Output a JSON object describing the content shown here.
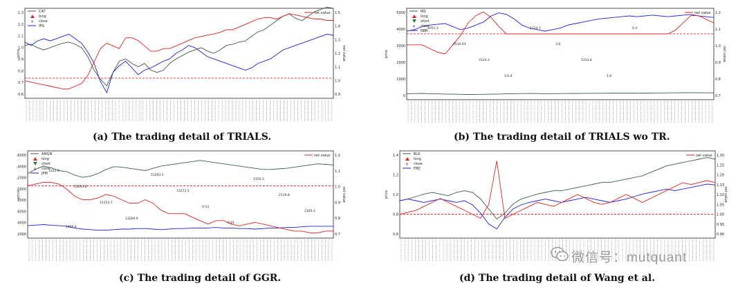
{
  "colors": {
    "price_a": "#3a5f40",
    "price_b": "#1f1fd6",
    "net": "#e02020",
    "baseline": "#e02020",
    "long": "#e02020",
    "short": "#2e7d32",
    "close": "#333366"
  },
  "captions": {
    "a": "(a) The trading detail of TRIALS.",
    "b": "(b) The trading detail of TRIALS wo TR.",
    "c": "(c) The trading detail of GGR.",
    "d": "(d) The trading detail of Wang et al."
  },
  "watermark": "微信号：mutquant",
  "panels": [
    {
      "id": "a",
      "chart_data": {
        "type": "line",
        "ylabel_left": "price",
        "ylabel_right": "net value",
        "left_ticks": [
          "1.3",
          "1.2",
          "1.1",
          "1.0",
          "0.9",
          "0.8",
          "0.7",
          "0.6"
        ],
        "right_ticks": [
          "1.5",
          "1.4",
          "1.3",
          "1.2",
          "1.1",
          "1.0",
          "0.9"
        ],
        "legend_left": [
          "CAT",
          "long",
          "close",
          "IPG"
        ],
        "legend_right": "net value",
        "series": [
          {
            "name": "CAT",
            "values": [
              1.02,
              1.03,
              1.0,
              0.98,
              1.0,
              1.02,
              1.04,
              1.05,
              1.03,
              1.0,
              0.92,
              0.8,
              0.72,
              0.66,
              0.78,
              0.88,
              0.9,
              0.86,
              0.83,
              0.86,
              0.8,
              0.78,
              0.8,
              0.86,
              0.9,
              0.93,
              0.96,
              0.98,
              1.0,
              0.97,
              0.95,
              0.98,
              1.02,
              1.03,
              1.05,
              1.06,
              1.1,
              1.14,
              1.16,
              1.2,
              1.24,
              1.28,
              1.3,
              1.26,
              1.24,
              1.28,
              1.32,
              1.34,
              1.36,
              1.35
            ]
          },
          {
            "name": "IPG",
            "values": [
              1.05,
              1.02,
              1.06,
              1.08,
              1.06,
              1.08,
              1.1,
              1.12,
              1.08,
              1.04,
              0.96,
              0.86,
              0.7,
              0.6,
              0.78,
              0.84,
              0.88,
              0.82,
              0.76,
              0.8,
              0.82,
              0.85,
              0.88,
              0.9,
              0.95,
              0.98,
              1.02,
              1.0,
              0.96,
              0.92,
              0.9,
              0.88,
              0.86,
              0.84,
              0.82,
              0.8,
              0.82,
              0.86,
              0.88,
              0.9,
              0.94,
              0.98,
              1.0,
              1.02,
              1.04,
              1.06,
              1.08,
              1.1,
              1.12,
              1.11
            ]
          },
          {
            "name": "net value",
            "values": [
              0.98,
              0.97,
              0.96,
              0.95,
              0.94,
              0.93,
              0.92,
              0.92,
              0.94,
              0.96,
              1.02,
              1.12,
              1.22,
              1.26,
              1.24,
              1.22,
              1.3,
              1.3,
              1.28,
              1.24,
              1.2,
              1.2,
              1.22,
              1.22,
              1.24,
              1.26,
              1.28,
              1.3,
              1.31,
              1.32,
              1.33,
              1.34,
              1.36,
              1.36,
              1.38,
              1.4,
              1.42,
              1.44,
              1.45,
              1.45,
              1.44,
              1.46,
              1.48,
              1.47,
              1.46,
              1.45,
              1.44,
              1.44,
              1.43,
              1.43
            ]
          }
        ]
      }
    },
    {
      "id": "b",
      "chart_data": {
        "type": "line",
        "ylabel_left": "price",
        "ylabel_right": "net value",
        "left_ticks": [
          "5000",
          "4000",
          "3000",
          "2000",
          "1000",
          "0"
        ],
        "right_ticks": [
          "1.2",
          "1.1",
          "1.0",
          "0.9",
          "0.8",
          "0.7"
        ],
        "legend_left": [
          "MS",
          "long",
          "short",
          "close",
          "NBR"
        ],
        "legend_right": "net value",
        "annotations": [
          "4051.1",
          "0510.93",
          "3124.3",
          "3.6.4",
          "1724.7",
          "3.8",
          "5333.8",
          "1.8",
          "0.4"
        ],
        "series": [
          {
            "name": "MS",
            "values": [
              4500,
              4600,
              4800,
              4900,
              4950,
              5000,
              4800,
              4600,
              4700,
              4900,
              5100,
              5500,
              5700,
              5600,
              5300,
              4900,
              4700,
              4600,
              4500,
              4600,
              4700,
              4900,
              5000,
              5100,
              5200,
              5300,
              5350,
              5400,
              5450,
              5500,
              5450,
              5500,
              5550,
              5500,
              5450,
              5500,
              5550,
              5600,
              5500,
              5450,
              5400
            ]
          },
          {
            "name": "NBR",
            "values": [
              380,
              400,
              410,
              390,
              380,
              370,
              360,
              350,
              340,
              345,
              350,
              360,
              370,
              380,
              390,
              400,
              410,
              400,
              390,
              395,
              400,
              405,
              410,
              415,
              420,
              420,
              425,
              430,
              435,
              430,
              425,
              430,
              435,
              440,
              445,
              450,
              455,
              460,
              455,
              450,
              445
            ]
          },
          {
            "name": "net value",
            "values": [
              1.0,
              1.0,
              1.0,
              0.98,
              0.96,
              0.95,
              1.0,
              1.05,
              1.12,
              1.16,
              1.18,
              1.15,
              1.1,
              1.06,
              1.06,
              1.06,
              1.06,
              1.06,
              1.06,
              1.06,
              1.06,
              1.06,
              1.06,
              1.06,
              1.06,
              1.06,
              1.06,
              1.06,
              1.06,
              1.06,
              1.06,
              1.06,
              1.06,
              1.06,
              1.06,
              1.08,
              1.12,
              1.16,
              1.16,
              1.14,
              1.12
            ]
          }
        ]
      }
    },
    {
      "id": "c",
      "chart_data": {
        "type": "line",
        "ylabel_left": "price",
        "ylabel_right": "net value",
        "left_ticks": [
          "16000",
          "14000",
          "12000",
          "10000",
          "8000",
          "6000",
          "4000",
          "2000"
        ],
        "right_ticks": [
          "1.2",
          "1.1",
          "1.0",
          "0.9",
          "0.8",
          "0.7"
        ],
        "legend_left": [
          "AMGN",
          "long",
          "short",
          "close",
          "JPM"
        ],
        "legend_right": "net value",
        "annotations": [
          "1322.9",
          "13693.8",
          "15153.7",
          "13269.9",
          "13263.5",
          "13273.5",
          "0.53",
          "0.81",
          "2150.3",
          "2119.8",
          "2165.3",
          "2496.6"
        ],
        "series": [
          {
            "name": "AMGN",
            "values": [
              12500,
              13200,
              13800,
              13500,
              13000,
              12800,
              12200,
              11800,
              12000,
              12500,
              13200,
              13700,
              13600,
              13400,
              13200,
              13000,
              13400,
              13800,
              14000,
              14200,
              14400,
              14600,
              14800,
              14600,
              14400,
              14200,
              14000,
              13800,
              13600,
              13400,
              13200,
              13200,
              13300,
              13400,
              13600,
              13800,
              14000,
              14200,
              14100,
              14000
            ]
          },
          {
            "name": "JPM",
            "values": [
              3200,
              3300,
              3400,
              3300,
              3200,
              3100,
              2800,
              2600,
              2500,
              2400,
              2400,
              2500,
              2600,
              2600,
              2700,
              2700,
              2600,
              2500,
              2600,
              2700,
              2700,
              2800,
              2800,
              2800,
              2900,
              2800,
              2800,
              2700,
              2700,
              2600,
              2700,
              2800,
              2800,
              2900,
              2900,
              3000,
              3100,
              3100,
              3100,
              3100
            ]
          },
          {
            "name": "net value",
            "values": [
              1.0,
              1.01,
              1.02,
              1.02,
              1.01,
              0.98,
              0.94,
              0.92,
              0.92,
              0.93,
              0.95,
              0.94,
              0.92,
              0.9,
              0.9,
              0.92,
              0.9,
              0.86,
              0.84,
              0.84,
              0.84,
              0.82,
              0.8,
              0.78,
              0.8,
              0.8,
              0.78,
              0.77,
              0.78,
              0.79,
              0.78,
              0.77,
              0.76,
              0.75,
              0.74,
              0.74,
              0.73,
              0.73,
              0.74,
              0.74
            ]
          }
        ]
      }
    },
    {
      "id": "d",
      "chart_data": {
        "type": "line",
        "ylabel_left": "price",
        "ylabel_right": "net value",
        "left_ticks": [
          "1.4",
          "1.2",
          "1.0",
          "0.8",
          "0.6"
        ],
        "right_ticks": [
          "1.30",
          "1.25",
          "1.20",
          "1.15",
          "1.10",
          "1.05",
          "1.00",
          "0.95",
          "0.90"
        ],
        "legend_left": [
          "BLK",
          "long",
          "close",
          "FMC"
        ],
        "legend_right": "net value",
        "series": [
          {
            "name": "BLK",
            "values": [
              1.0,
              1.02,
              1.05,
              1.08,
              1.1,
              1.08,
              1.06,
              1.1,
              1.12,
              1.1,
              1.02,
              0.9,
              0.78,
              0.85,
              0.96,
              1.02,
              1.05,
              1.08,
              1.1,
              1.12,
              1.12,
              1.14,
              1.16,
              1.18,
              1.2,
              1.22,
              1.22,
              1.24,
              1.26,
              1.28,
              1.3,
              1.34,
              1.38,
              1.42,
              1.44,
              1.46,
              1.48,
              1.5,
              1.52,
              1.5
            ]
          },
          {
            "name": "FMC",
            "values": [
              1.0,
              1.02,
              1.0,
              0.98,
              1.0,
              1.02,
              1.0,
              0.98,
              1.0,
              0.95,
              0.85,
              0.72,
              0.66,
              0.8,
              0.9,
              0.95,
              0.98,
              1.0,
              1.02,
              1.0,
              0.98,
              1.0,
              1.02,
              1.04,
              1.02,
              1.0,
              0.98,
              1.0,
              1.02,
              1.05,
              1.08,
              1.1,
              1.12,
              1.14,
              1.12,
              1.14,
              1.16,
              1.18,
              1.2,
              1.19
            ]
          },
          {
            "name": "net value",
            "values": [
              1.0,
              1.01,
              1.02,
              1.04,
              1.06,
              1.08,
              1.06,
              1.04,
              1.02,
              1.0,
              0.98,
              1.05,
              1.27,
              0.98,
              1.0,
              1.02,
              1.04,
              1.06,
              1.05,
              1.04,
              1.06,
              1.08,
              1.1,
              1.08,
              1.06,
              1.05,
              1.06,
              1.08,
              1.1,
              1.08,
              1.06,
              1.08,
              1.1,
              1.12,
              1.14,
              1.16,
              1.15,
              1.16,
              1.17,
              1.16
            ]
          }
        ]
      }
    }
  ]
}
